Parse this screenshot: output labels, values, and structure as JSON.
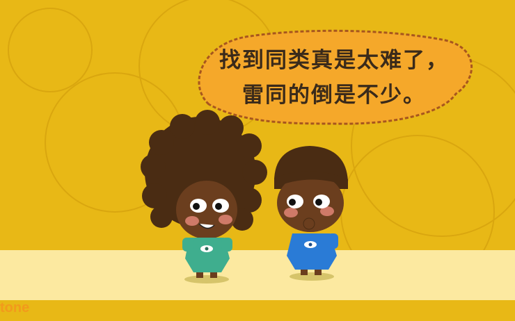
{
  "speech": {
    "line1": "找到同类真是太难了，",
    "line2": "雷同的倒是不少。"
  },
  "logo": {
    "text": "tone"
  },
  "colors": {
    "background": "#E8B816",
    "floor": "#FCE9A0",
    "bubble": "#F5A82A",
    "afro_hair": "#4A2C13",
    "skin": "#6B3E1E",
    "green_outfit": "#3FAE8E",
    "blue_outfit": "#2A7BD6"
  }
}
